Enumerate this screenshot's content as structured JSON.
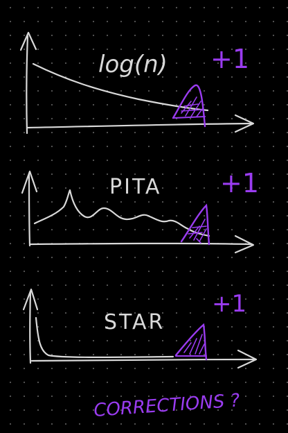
{
  "colors": {
    "background": "#000000",
    "ink": "#d9d9d9",
    "accent": "#9a3cf0",
    "dots": "#5a5a5a"
  },
  "panels": [
    {
      "label": "log(n)",
      "increment": "+1"
    },
    {
      "label": "PITA",
      "increment": "+1"
    },
    {
      "label": "STAR",
      "increment": "+1"
    }
  ],
  "footer": {
    "text": "CORRECTIONS ?"
  }
}
